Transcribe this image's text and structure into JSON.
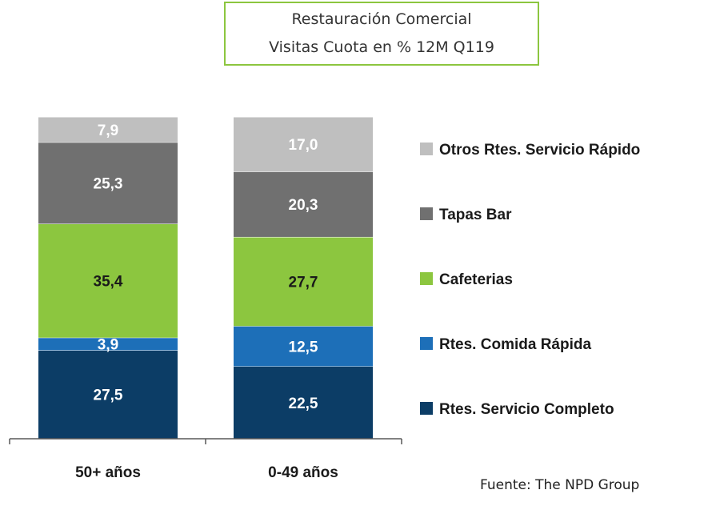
{
  "header": {
    "title": "Restauración  Comercial",
    "subtitle": "Visitas Cuota en % 12M Q119"
  },
  "source": "Fuente: The NPD Group",
  "chart_data": {
    "type": "bar",
    "stacked": true,
    "categories": [
      "50+ años",
      "0-49 años"
    ],
    "series": [
      {
        "name": "Rtes. Servicio Completo",
        "values": [
          27.5,
          22.5
        ],
        "labels": [
          "27,5",
          "22,5"
        ],
        "color": "#0c3d66",
        "label_color": "#ffffff"
      },
      {
        "name": "Rtes. Comida Rápida",
        "values": [
          3.9,
          12.5
        ],
        "labels": [
          "3,9",
          "12,5"
        ],
        "color": "#1d6fb8",
        "label_color": "#ffffff"
      },
      {
        "name": "Cafeterias",
        "values": [
          35.4,
          27.7
        ],
        "labels": [
          "35,4",
          "27,7"
        ],
        "color": "#8cc63f",
        "label_color": "#1a1a1a"
      },
      {
        "name": "Tapas Bar",
        "values": [
          25.3,
          20.3
        ],
        "labels": [
          "25,3",
          "20,3"
        ],
        "color": "#707070",
        "label_color": "#ffffff"
      },
      {
        "name": "Otros Rtes. Servicio Rápido",
        "values": [
          7.9,
          17.0
        ],
        "labels": [
          "7,9",
          "17,0"
        ],
        "color": "#bfbfbf",
        "label_color": "#ffffff"
      }
    ],
    "legend": "right",
    "grid": false
  }
}
